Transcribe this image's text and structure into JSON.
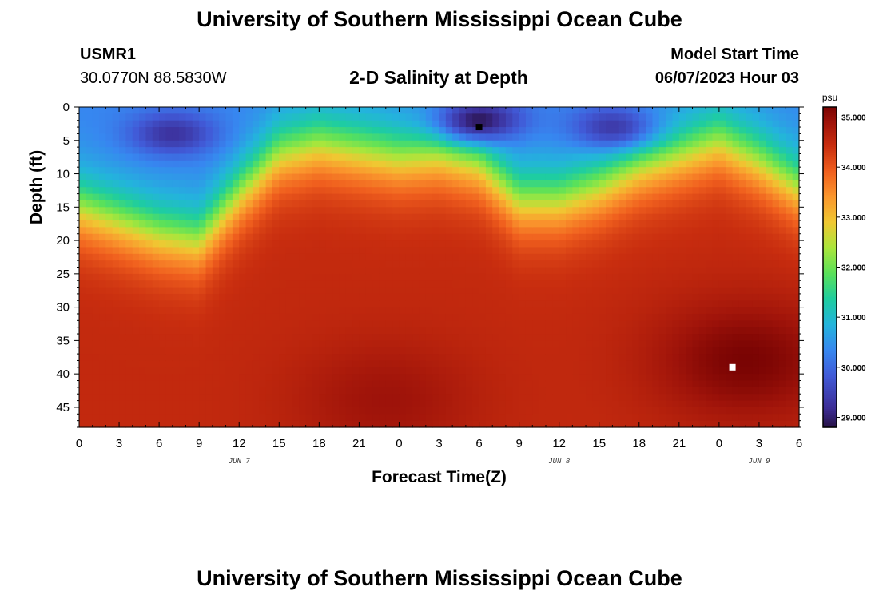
{
  "header": {
    "title": "University of Southern Mississippi Ocean Cube",
    "station": "USMR1",
    "coordinates": "30.0770N  88.5830W",
    "subtitle": "2-D Salinity at Depth",
    "model_start_label": "Model Start Time",
    "model_start_value": "06/07/2023 Hour 03"
  },
  "footer": {
    "title": "University of Southern Mississippi Ocean Cube"
  },
  "chart_data": {
    "type": "heatmap",
    "title": "2-D Salinity at Depth",
    "xlabel": "Forecast Time(Z)",
    "ylabel": "Depth (ft)",
    "x_hours_range": [
      0,
      54
    ],
    "x_tick_labels": [
      "0",
      "3",
      "6",
      "9",
      "12",
      "15",
      "18",
      "21",
      "0",
      "3",
      "6",
      "9",
      "12",
      "15",
      "18",
      "21",
      "0",
      "3",
      "6"
    ],
    "date_labels": [
      {
        "hour": 12,
        "label": "JUN 7"
      },
      {
        "hour": 36,
        "label": "JUN 8"
      },
      {
        "hour": 51,
        "label": "JUN 9"
      }
    ],
    "ylim": [
      0,
      48
    ],
    "y_ticks": [
      0,
      5,
      10,
      15,
      20,
      25,
      30,
      35,
      40,
      45
    ],
    "colorbar": {
      "unit": "psu",
      "range": [
        28.8,
        35.2
      ],
      "ticks": [
        "29.000",
        "30.000",
        "31.000",
        "32.000",
        "33.000",
        "34.000",
        "35.000"
      ]
    },
    "markers": [
      {
        "hour": 30,
        "depth": 3,
        "color": "#000000"
      },
      {
        "hour": 49,
        "depth": 39,
        "color": "#ffffff"
      }
    ],
    "halocline_depth_ft": [
      [
        0,
        15
      ],
      [
        3,
        17
      ],
      [
        6,
        19
      ],
      [
        9,
        20
      ],
      [
        12,
        13
      ],
      [
        15,
        7
      ],
      [
        18,
        5.5
      ],
      [
        21,
        6.5
      ],
      [
        24,
        7.5
      ],
      [
        27,
        7
      ],
      [
        30,
        8.5
      ],
      [
        33,
        14
      ],
      [
        36,
        14
      ],
      [
        39,
        12
      ],
      [
        42,
        9
      ],
      [
        45,
        7
      ],
      [
        48,
        5
      ],
      [
        51,
        8
      ],
      [
        54,
        12
      ]
    ],
    "fresh_core": [
      {
        "hour": 7,
        "depth": 4,
        "value": 29.2
      },
      {
        "hour": 30,
        "depth": 2,
        "value": 28.8
      },
      {
        "hour": 40,
        "depth": 3,
        "value": 29.3
      }
    ],
    "salty_core": [
      {
        "hour": 23,
        "depth": 44,
        "value": 34.9
      },
      {
        "hour": 50,
        "depth": 38,
        "value": 35.2
      }
    ],
    "surface_salinity_psu": 30.3,
    "bottom_salinity_psu": 34.5
  }
}
